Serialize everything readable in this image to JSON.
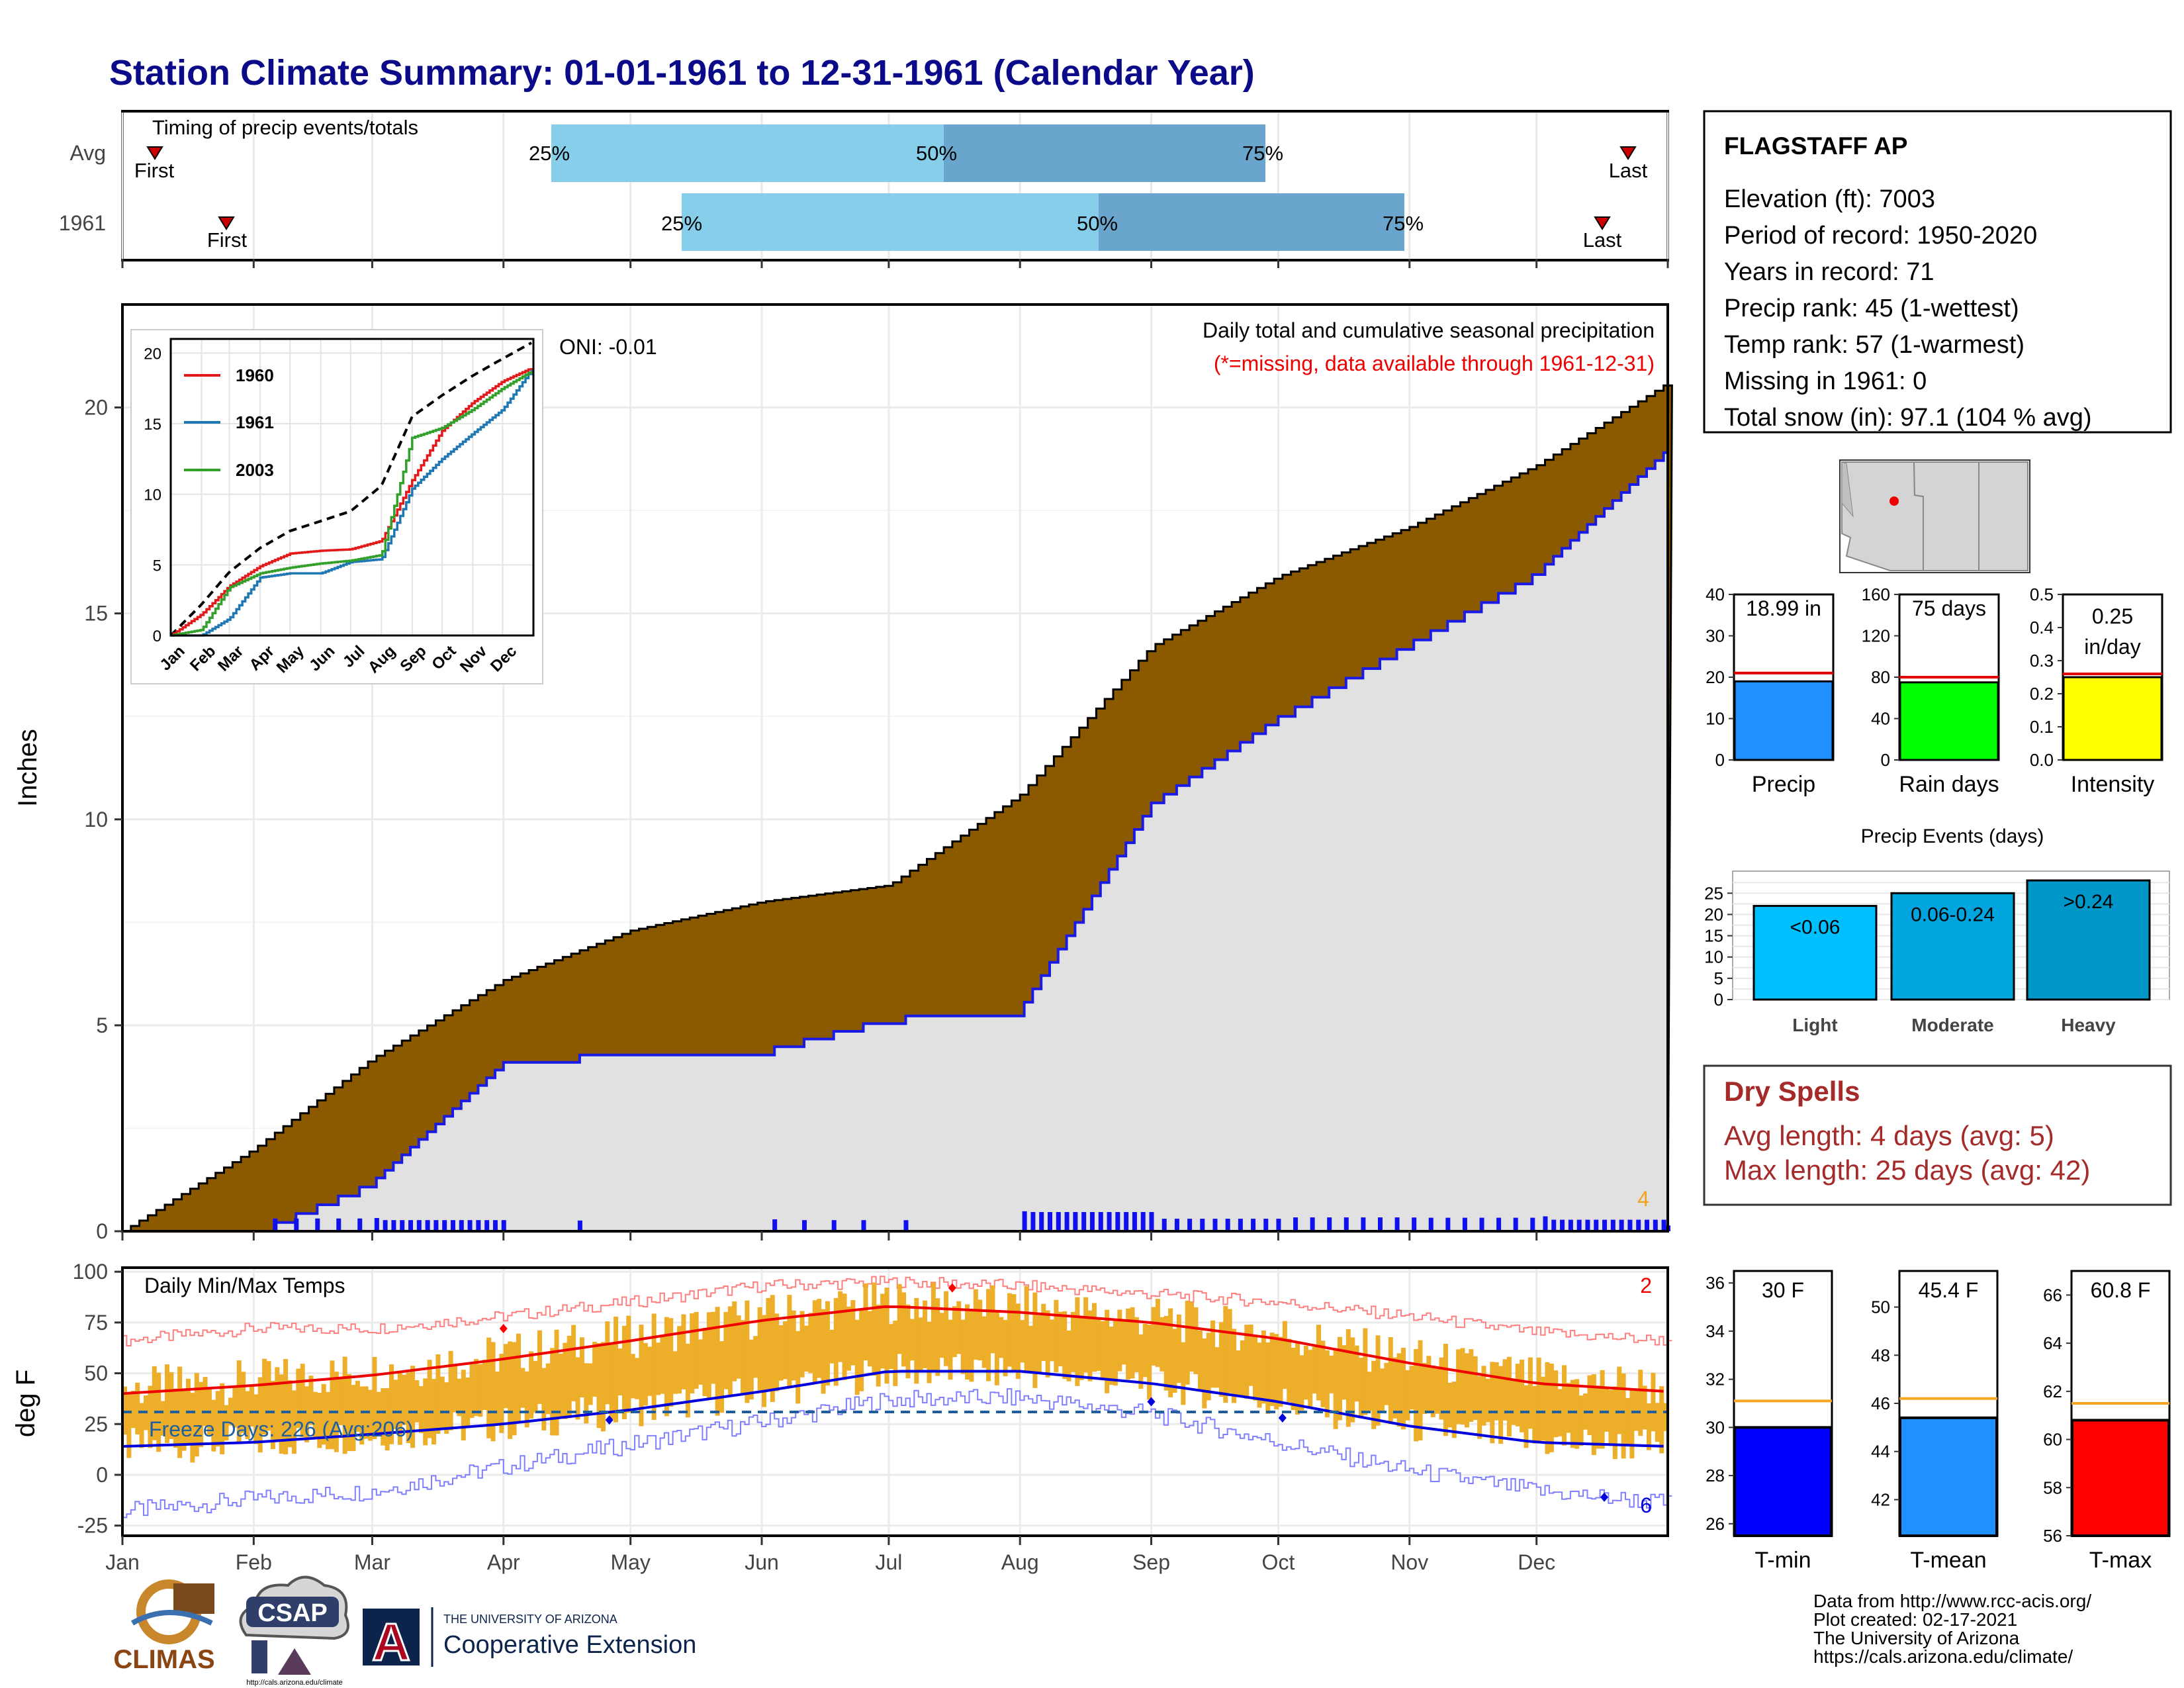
{
  "title": "Station Climate Summary: 01-01-1961 to 12-31-1961 (Calendar Year)",
  "timing": {
    "label": "Timing of precip events/totals",
    "rows": [
      {
        "name": "Avg",
        "p25": "25%",
        "p50": "50%",
        "p75": "75%",
        "first": "First",
        "last": "Last"
      },
      {
        "name": "1961",
        "p25": "25%",
        "p50": "50%",
        "p75": "75%",
        "first": "First",
        "last": "Last"
      }
    ]
  },
  "precip_panel": {
    "ylabel": "Inches",
    "yticks": [
      "0",
      "5",
      "10",
      "15",
      "20"
    ],
    "oni": "ONI: -0.01",
    "subtitle": "Daily total and cumulative seasonal precipitation",
    "missing_note": "(*=missing, data available through 1961-12-31)",
    "corner_count": "4"
  },
  "inset": {
    "yticks": [
      "0",
      "5",
      "10",
      "15",
      "20"
    ],
    "months": [
      "Jan",
      "Feb",
      "Mar",
      "Apr",
      "May",
      "Jun",
      "Jul",
      "Aug",
      "Sep",
      "Oct",
      "Nov",
      "Dec"
    ],
    "legend": [
      {
        "name": "1960",
        "color": "#e31a1c"
      },
      {
        "name": "1961",
        "color": "#1f78b4"
      },
      {
        "name": "2003",
        "color": "#33a02c"
      }
    ]
  },
  "temp_panel": {
    "ylabel": "deg F",
    "label": "Daily Min/Max Temps",
    "freeze": "Freeze Days: 226 (Avg:206)",
    "yticks": [
      "100",
      "75",
      "50",
      "25",
      "0",
      "-25"
    ],
    "count_max": "2",
    "count_min": "6"
  },
  "months": [
    "Jan",
    "Feb",
    "Mar",
    "Apr",
    "May",
    "Jun",
    "Jul",
    "Aug",
    "Sep",
    "Oct",
    "Nov",
    "Dec"
  ],
  "station": {
    "name": "FLAGSTAFF AP",
    "lines": [
      "Elevation (ft): 7003",
      "Period of record: 1950-2020",
      "Years in record: 71",
      "Precip rank: 45 (1-wettest)",
      "Temp rank: 57 (1-warmest)",
      "Missing in 1961: 0",
      "Total snow (in): 97.1 (104 % avg)"
    ]
  },
  "mini_bars": [
    {
      "label": "Precip",
      "value_text": "18.99 in",
      "yticks": [
        "0",
        "10",
        "20",
        "30",
        "40"
      ],
      "color": "#1e90ff"
    },
    {
      "label": "Rain days",
      "value_text": "75 days",
      "yticks": [
        "0",
        "40",
        "80",
        "120",
        "160"
      ],
      "color": "#00ff00"
    },
    {
      "label": "Intensity",
      "value_text": "0.25",
      "value_text2": "in/day",
      "yticks": [
        "0.0",
        "0.1",
        "0.2",
        "0.3",
        "0.4",
        "0.5"
      ],
      "color": "#ffff00"
    }
  ],
  "events": {
    "title": "Precip Events (days)",
    "yticks": [
      "0",
      "5",
      "10",
      "15",
      "20",
      "25"
    ],
    "bars": [
      {
        "label": "Light",
        "text": "<0.06",
        "color": "#00bfff"
      },
      {
        "label": "Moderate",
        "text": "0.06-0.24",
        "color": "#00a5e0"
      },
      {
        "label": "Heavy",
        "text": ">0.24",
        "color": "#0096c7"
      }
    ]
  },
  "dry_spells": {
    "title": "Dry Spells",
    "avg": "Avg length: 4 days (avg: 5)",
    "max": "Max length: 25 days (avg: 42)"
  },
  "temp_bars": [
    {
      "label": "T-min",
      "value_text": "30 F",
      "yticks": [
        "26",
        "28",
        "30",
        "32",
        "34",
        "36"
      ],
      "color": "#0000ff"
    },
    {
      "label": "T-mean",
      "value_text": "45.4 F",
      "yticks": [
        "42",
        "44",
        "46",
        "48",
        "50"
      ],
      "color": "#1e90ff"
    },
    {
      "label": "T-max",
      "value_text": "60.8 F",
      "yticks": [
        "56",
        "58",
        "60",
        "62",
        "64",
        "66"
      ],
      "color": "#ff0000"
    }
  ],
  "credits": [
    "Data from http://www.rcc-acis.org/",
    "Plot created: 02-17-2021",
    "The University of Arizona",
    "https://cals.arizona.edu/climate/"
  ],
  "logos": {
    "climas": "CLIMAS",
    "csap": "CSAP",
    "csap_url": "http://cals.arizona.edu/climate",
    "ua_line1": "THE UNIVERSITY OF ARIZONA",
    "ua_line2": "Cooperative Extension",
    "ua_letter": "A"
  },
  "chart_data": [
    {
      "type": "area",
      "title": "Daily total and cumulative seasonal precipitation",
      "ylabel": "Inches",
      "ylim": [
        0,
        22.5
      ],
      "x": [
        "Jan",
        "Feb",
        "Mar",
        "Apr",
        "May",
        "Jun",
        "Jul",
        "Aug",
        "Sep",
        "Oct",
        "Nov",
        "Dec",
        "end"
      ],
      "series": [
        {
          "name": "",
          "values": [
            0,
            2.0,
            4.2,
            6.1,
            7.3,
            8.0,
            8.4,
            10.6,
            14.2,
            15.9,
            17.1,
            18.6,
            20.6
          ]
        },
        {
          "name": "",
          "values": [
            0,
            0,
            1.2,
            4.1,
            4.4,
            4.4,
            5.2,
            5.4,
            10.4,
            12.5,
            14.3,
            16.0,
            19.0
          ]
        }
      ],
      "grid": true
    },
    {
      "type": "line",
      "ylim": [
        0,
        20
      ],
      "x": [
        "Jan",
        "Feb",
        "Mar",
        "Apr",
        "May",
        "Jun",
        "Jul",
        "Aug",
        "Sep",
        "Oct",
        "Nov",
        "Dec",
        "end"
      ],
      "series": [
        {
          "name": "",
          "values": [
            0,
            2.2,
            4.5,
            6.2,
            7.4,
            8.1,
            8.8,
            10.6,
            15.5,
            17.0,
            18.4,
            19.6,
            20.8
          ]
        },
        {
          "name": "1960",
          "values": [
            0,
            1.5,
            3.5,
            4.9,
            5.8,
            6.0,
            6.1,
            6.7,
            11.0,
            14.5,
            16.5,
            18.0,
            19.0
          ]
        },
        {
          "name": "1961",
          "values": [
            0,
            0,
            1.2,
            4.1,
            4.4,
            4.4,
            5.2,
            5.4,
            10.4,
            12.5,
            14.3,
            16.0,
            19.0
          ]
        },
        {
          "name": "2003",
          "values": [
            0,
            0.4,
            3.4,
            4.4,
            4.8,
            5.1,
            5.3,
            5.7,
            14.0,
            14.7,
            16.0,
            17.5,
            18.8
          ]
        }
      ],
      "legend": "top-left"
    },
    {
      "type": "line",
      "title": "Daily Min/Max Temps",
      "ylabel": "deg F",
      "ylim": [
        -30,
        102
      ],
      "x": [
        "Jan",
        "Feb",
        "Mar",
        "Apr",
        "May",
        "Jun",
        "Jul",
        "Aug",
        "Sep",
        "Oct",
        "Nov",
        "Dec",
        "end"
      ],
      "series": [
        {
          "name": "",
          "values": [
            66,
            72,
            72,
            78,
            85,
            93,
            95,
            93,
            89,
            85,
            78,
            70,
            66
          ]
        },
        {
          "name": "",
          "values": [
            40,
            44,
            49,
            57,
            66,
            76,
            83,
            80,
            75,
            67,
            55,
            45,
            41
          ]
        },
        {
          "name": "",
          "values": [
            14,
            16,
            20,
            25,
            32,
            41,
            51,
            51,
            45,
            36,
            24,
            16,
            14
          ]
        },
        {
          "name": "",
          "values": [
            -18,
            -12,
            -8,
            4,
            15,
            26,
            37,
            38,
            30,
            16,
            2,
            -8,
            -14
          ]
        },
        {
          "name": "",
          "values": [
            32,
            32,
            32,
            32,
            32,
            32,
            32,
            32,
            32,
            32,
            32,
            32,
            32
          ]
        }
      ]
    },
    {
      "type": "bar",
      "categories": [
        "Precip"
      ],
      "values": [
        18.99
      ],
      "ylim": [
        0,
        40
      ],
      "reference": 21
    },
    {
      "type": "bar",
      "categories": [
        "Rain days"
      ],
      "values": [
        75
      ],
      "ylim": [
        0,
        160
      ],
      "reference": 80
    },
    {
      "type": "bar",
      "categories": [
        "Intensity"
      ],
      "values": [
        0.25
      ],
      "ylim": [
        0,
        0.5
      ],
      "reference": 0.26
    },
    {
      "type": "bar",
      "title": "Precip Events (days)",
      "categories": [
        "Light",
        "Moderate",
        "Heavy"
      ],
      "values": [
        22,
        25,
        28
      ],
      "ylim": [
        0,
        28
      ]
    },
    {
      "type": "bar",
      "categories": [
        "T-min"
      ],
      "values": [
        30
      ],
      "ylim": [
        25.5,
        36.5
      ],
      "reference": 31.1
    },
    {
      "type": "bar",
      "categories": [
        "T-mean"
      ],
      "values": [
        45.4
      ],
      "ylim": [
        40.5,
        51.5
      ],
      "reference": 46.2
    },
    {
      "type": "bar",
      "categories": [
        "T-max"
      ],
      "values": [
        60.8
      ],
      "ylim": [
        56,
        67
      ],
      "reference": 61.5
    }
  ]
}
